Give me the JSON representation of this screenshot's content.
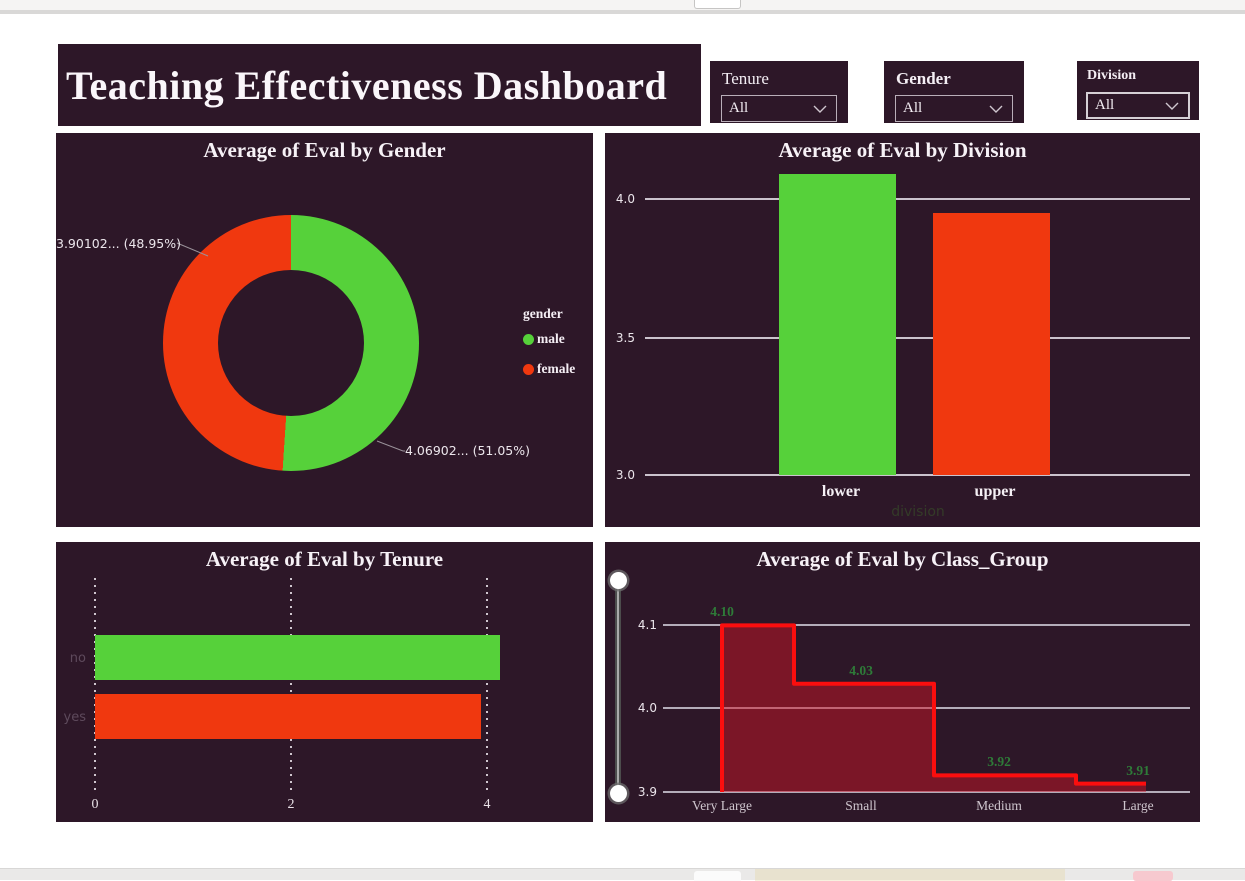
{
  "header": {
    "title": "Teaching Effectiveness Dashboard"
  },
  "filters": [
    {
      "id": "tenure",
      "label": "Tenure",
      "value": "All"
    },
    {
      "id": "gender",
      "label": "Gender",
      "value": "All"
    },
    {
      "id": "division",
      "label": "Division",
      "value": "All"
    }
  ],
  "colors": {
    "panel_bg": "#2d1728",
    "male_green": "#56d13a",
    "female_red": "#f0380f",
    "step_line_red": "#fb0e0e",
    "step_label_green": "#2e7b38"
  },
  "chart_data": [
    {
      "id": "eval_by_gender",
      "type": "pie",
      "donut": true,
      "title": "Average of Eval by Gender",
      "legend_title": "gender",
      "legend_position": "right",
      "slices": [
        {
          "label": "male",
          "value": 4.06902,
          "pct": 51.05,
          "value_label": "4.06902... (51.05%)",
          "color": "#56d13a"
        },
        {
          "label": "female",
          "value": 3.90102,
          "pct": 48.95,
          "value_label": "3.90102... (48.95%)",
          "color": "#f0380f"
        }
      ]
    },
    {
      "id": "eval_by_division",
      "type": "bar",
      "title": "Average of Eval by Division",
      "categories": [
        "lower",
        "upper"
      ],
      "values": [
        4.09,
        3.95
      ],
      "colors": [
        "#56d13a",
        "#f0380f"
      ],
      "xlabel": "division",
      "ylabel": "",
      "ybase": 3.0,
      "ylim": [
        3.0,
        4.15
      ],
      "ytick_labels": [
        "4.0",
        "3.5",
        "3.0"
      ],
      "yticks": [
        4.0,
        3.5,
        3.0
      ],
      "grid": true
    },
    {
      "id": "eval_by_tenure",
      "type": "bar",
      "orientation": "horizontal",
      "title": "Average of Eval by Tenure",
      "categories": [
        "no",
        "yes"
      ],
      "values": [
        4.13,
        3.94
      ],
      "colors": [
        "#56d13a",
        "#f0380f"
      ],
      "xtick_labels": [
        "0",
        "2",
        "4"
      ],
      "xticks": [
        0,
        2,
        4
      ],
      "xlim": [
        0,
        4.5
      ],
      "grid": "dotted"
    },
    {
      "id": "eval_by_class_group",
      "type": "area",
      "subtype": "step",
      "title": "Average of Eval by Class_Group",
      "categories": [
        "Very Large",
        "Small",
        "Medium",
        "Large"
      ],
      "values": [
        4.1,
        4.03,
        3.92,
        3.91
      ],
      "value_labels": [
        "4.10",
        "4.03",
        "3.92",
        "3.91"
      ],
      "ytick_labels": [
        "4.1",
        "4.0",
        "3.9"
      ],
      "yticks": [
        4.1,
        4.0,
        3.9
      ],
      "ylim": [
        3.9,
        4.12
      ],
      "line_color": "#fb0e0e",
      "fill_color": "rgba(210,20,40,0.48)",
      "grid": true
    }
  ]
}
